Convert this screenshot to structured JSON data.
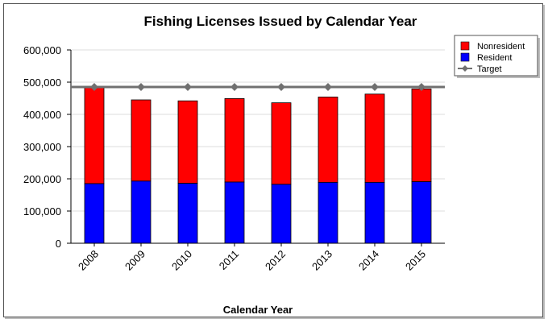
{
  "chart_data": {
    "type": "bar",
    "stacked": true,
    "title": "Fishing Licenses Issued by Calendar Year",
    "xlabel": "Calendar Year",
    "ylabel": "",
    "ylim": [
      0,
      600000
    ],
    "yticks": [
      "0",
      "100,000",
      "200,000",
      "300,000",
      "400,000",
      "500,000",
      "600,000"
    ],
    "grid": true,
    "legend_position": "top-right",
    "categories": [
      "2008",
      "2009",
      "2010",
      "2011",
      "2012",
      "2013",
      "2014",
      "2015"
    ],
    "series": [
      {
        "name": "Resident",
        "color": "#0000ff",
        "values": [
          185000,
          193000,
          186000,
          190000,
          183000,
          189000,
          189000,
          191000
        ]
      },
      {
        "name": "Nonresident",
        "color": "#ff0000",
        "values": [
          298000,
          252000,
          256000,
          259000,
          253000,
          265000,
          274000,
          288000
        ]
      }
    ],
    "target": {
      "name": "Target",
      "color": "#707070",
      "values": [
        485000,
        485000,
        485000,
        485000,
        485000,
        485000,
        485000,
        485000
      ]
    },
    "legend_order": [
      "Nonresident",
      "Resident",
      "Target"
    ]
  }
}
